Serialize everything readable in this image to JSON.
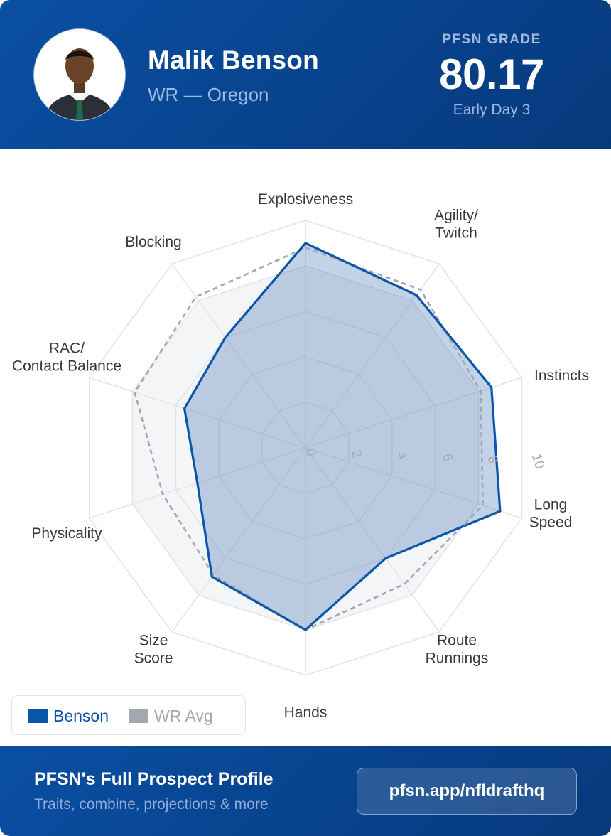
{
  "header": {
    "player_name": "Malik Benson",
    "position_school": "WR — Oregon",
    "grade_label": "PFSN GRADE",
    "grade_value": "80.17",
    "grade_tier": "Early Day 3"
  },
  "colors": {
    "brand_blue": "#0a4fa3",
    "brand_blue_dark": "#06397c",
    "player_series": "#0b56a8",
    "average_series": "#a3a8b0"
  },
  "chart_data": {
    "type": "radar",
    "categories": [
      "Explosiveness",
      "Agility/\nTwitch",
      "Instincts",
      "Long\nSpeed",
      "Route\nRunnings",
      "Hands",
      "Size\nScore",
      "Physicality",
      "RAC/\nContact Balance",
      "Blocking"
    ],
    "series": [
      {
        "name": "Benson",
        "values": [
          9.0,
          8.3,
          8.6,
          9.0,
          6.0,
          8.0,
          7.0,
          5.0,
          5.6,
          6.0
        ],
        "style": "solid"
      },
      {
        "name": "WR Avg",
        "values": [
          8.8,
          8.6,
          8.1,
          8.2,
          7.4,
          8.0,
          6.9,
          6.6,
          7.9,
          8.2
        ],
        "style": "dashed"
      }
    ],
    "r_range": [
      0,
      10
    ],
    "r_ticks": [
      0,
      2,
      4,
      6,
      8,
      10
    ],
    "grid": true,
    "legend_position": "bottom-left"
  },
  "legend": {
    "player_label": "Benson",
    "average_label": "WR Avg"
  },
  "footer": {
    "title": "PFSN's Full Prospect Profile",
    "subtitle": "Traits, combine, projections & more",
    "link_label": "pfsn.app/nfldrafthq"
  }
}
